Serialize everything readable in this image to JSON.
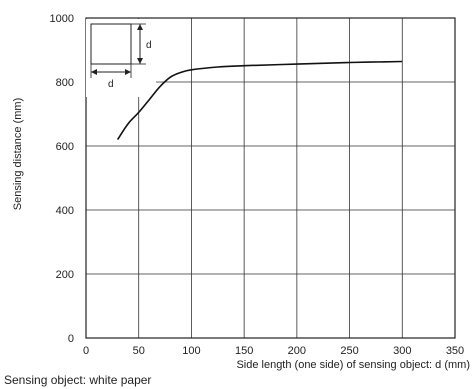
{
  "chart_data": {
    "type": "line",
    "title": "",
    "xlabel": "Side length (one side) of sensing object: d (mm)",
    "ylabel": "Sensing distance (mm)",
    "xlim": [
      0,
      350
    ],
    "ylim": [
      0,
      1000
    ],
    "x_ticks": [
      "0",
      "50",
      "100",
      "150",
      "200",
      "250",
      "300",
      "350"
    ],
    "y_ticks": [
      "0",
      "200",
      "400",
      "600",
      "800",
      "1000"
    ],
    "grid": true,
    "series": [
      {
        "x": [
          30,
          40,
          50,
          60,
          70,
          80,
          90,
          100,
          125,
          150,
          200,
          250,
          300
        ],
        "y": [
          620,
          670,
          705,
          745,
          785,
          815,
          830,
          838,
          847,
          851,
          856,
          861,
          864
        ]
      }
    ],
    "inset": {
      "dimension_label_side": "d",
      "dimension_label_bottom": "d"
    },
    "footnote": "Sensing object: white paper"
  }
}
